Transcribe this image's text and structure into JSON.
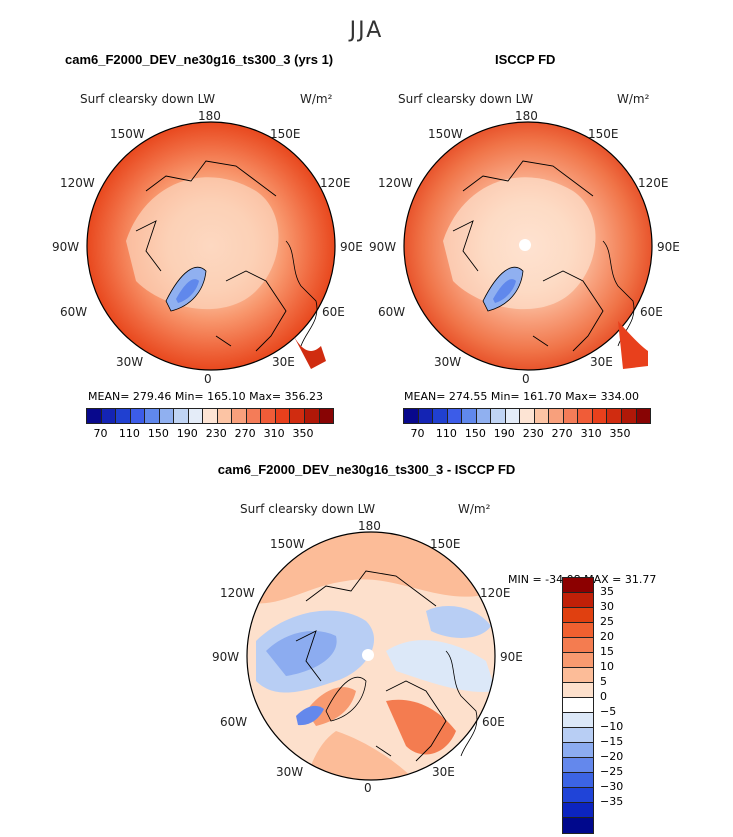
{
  "main_title": "JJA",
  "panels": [
    {
      "title": "cam6_F2000_DEV_ne30g16_ts300_3 (yrs 1)",
      "variable": "Surf clearsky down LW",
      "units": "W/m²",
      "stats": "MEAN= 279.46   Min= 165.10   Max= 356.23"
    },
    {
      "title": "ISCCP FD",
      "variable": "Surf clearsky down LW",
      "units": "W/m²",
      "stats": "MEAN= 274.55   Min= 161.70   Max= 334.00"
    },
    {
      "title": "cam6_F2000_DEV_ne30g16_ts300_3 - ISCCP FD",
      "variable": "Surf clearsky down LW",
      "units": "W/m²",
      "stats": "MIN = -34.08 MAX =  31.77"
    }
  ],
  "longitude_labels": {
    "top": "180",
    "upper_left": "150W",
    "upper_right": "150E",
    "left_upper": "120W",
    "right_upper": "120E",
    "left": "90W",
    "right": "90E",
    "left_lower": "60W",
    "right_lower": "60E",
    "lower_left": "30W",
    "lower_right": "30E",
    "bottom": "0"
  },
  "abs_colorbar": {
    "colors": [
      "#08088c",
      "#1424b4",
      "#2040d0",
      "#3c5ce8",
      "#6088ec",
      "#90b0f0",
      "#c0d4f4",
      "#e4ecf8",
      "#fde4d4",
      "#fcc4a4",
      "#f8a07c",
      "#f47c58",
      "#f05c38",
      "#e8401c",
      "#d02c10",
      "#b01808",
      "#880404"
    ],
    "ticks": [
      "70",
      "110",
      "150",
      "190",
      "230",
      "270",
      "310",
      "350"
    ]
  },
  "diff_colorbar": {
    "colors": [
      "#8c0000",
      "#c02008",
      "#e04010",
      "#f06030",
      "#f47c50",
      "#f89a70",
      "#fcbc98",
      "#fde0cc",
      "#ffffff",
      "#dce8f8",
      "#b8cef4",
      "#8cacf0",
      "#6488ec",
      "#3c64e4",
      "#2044d8",
      "#0c24c0",
      "#00088c"
    ],
    "ticks": [
      "35",
      "30",
      "25",
      "20",
      "15",
      "10",
      "5",
      "0",
      "−5",
      "−10",
      "−15",
      "−20",
      "−25",
      "−30",
      "−35"
    ]
  }
}
